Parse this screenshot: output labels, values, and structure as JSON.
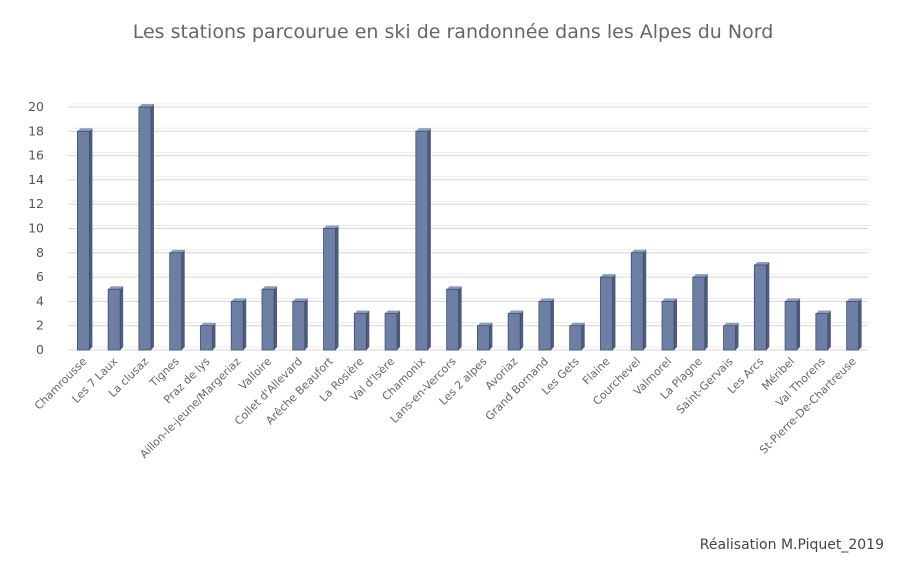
{
  "chart_data": {
    "type": "bar",
    "title": "Les stations parcourue en ski de randonnée dans les Alpes du Nord",
    "xlabel": "",
    "ylabel": "",
    "ylim": [
      0,
      20
    ],
    "yticks": [
      0,
      2,
      4,
      6,
      8,
      10,
      12,
      14,
      16,
      18,
      20
    ],
    "grid": true,
    "legend": "none",
    "bar_color": "#6d7fa5",
    "categories": [
      "Chamrousse",
      "Les 7 Laux",
      "La clusaz",
      "Tignes",
      "Praz de lys",
      "Aillon-le-jeune/Margeriaz",
      "Valloire",
      "Collet d'Allevard",
      "Arêche Beaufort",
      "La Rosière",
      "Val d'Isère",
      "Chamonix",
      "Lans-en-Vercors",
      "Les 2 alpes",
      "Avoriaz",
      "Grand Bornand",
      "Les Gets",
      "Flaine",
      "Courchevel",
      "Valmorel",
      "La Plagne",
      "Saint-Gervais",
      "Les Arcs",
      "Méribel",
      "Val Thorens",
      "St-Pierre-De-Chartreuse"
    ],
    "values": [
      18,
      5,
      20,
      8,
      2,
      4,
      5,
      4,
      10,
      3,
      3,
      18,
      5,
      2,
      3,
      4,
      2,
      6,
      8,
      4,
      6,
      2,
      7,
      4,
      3,
      4
    ]
  },
  "credit": "Réalisation M.Piquet_2019"
}
